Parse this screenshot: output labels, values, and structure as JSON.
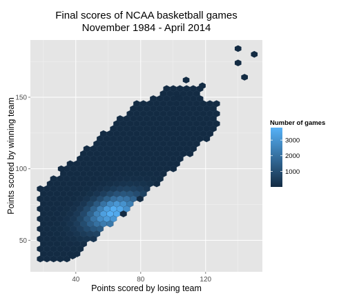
{
  "chart_data": {
    "type": "hexbin",
    "title": "Final scores of NCAA basketball games",
    "subtitle": "November 1984 - April 2014",
    "xlabel": "Points scored by losing team",
    "ylabel": "Points scored by winning team",
    "xlim": [
      12,
      155
    ],
    "ylim": [
      28,
      190
    ],
    "x_ticks": [
      40,
      80,
      120
    ],
    "y_ticks": [
      50,
      100,
      150
    ],
    "grid": true,
    "legend": {
      "title": "Number of games",
      "position": "right",
      "ticks": [
        1000,
        2000,
        3000
      ],
      "range": [
        1,
        3800
      ],
      "color_low": "#132B43",
      "color_high": "#56B1F7"
    },
    "density_model": {
      "peak": [
        63,
        70
      ],
      "peak_count": 3800,
      "note": "hexagon counts concentrated along winning > losing diagonal"
    },
    "outliers": [
      {
        "x": 140,
        "y": 184
      },
      {
        "x": 150,
        "y": 180
      },
      {
        "x": 140,
        "y": 174
      },
      {
        "x": 108,
        "y": 162
      },
      {
        "x": 118,
        "y": 158
      },
      {
        "x": 144,
        "y": 164
      },
      {
        "x": 103,
        "y": 150
      },
      {
        "x": 31,
        "y": 100
      },
      {
        "x": 38,
        "y": 39
      }
    ]
  }
}
